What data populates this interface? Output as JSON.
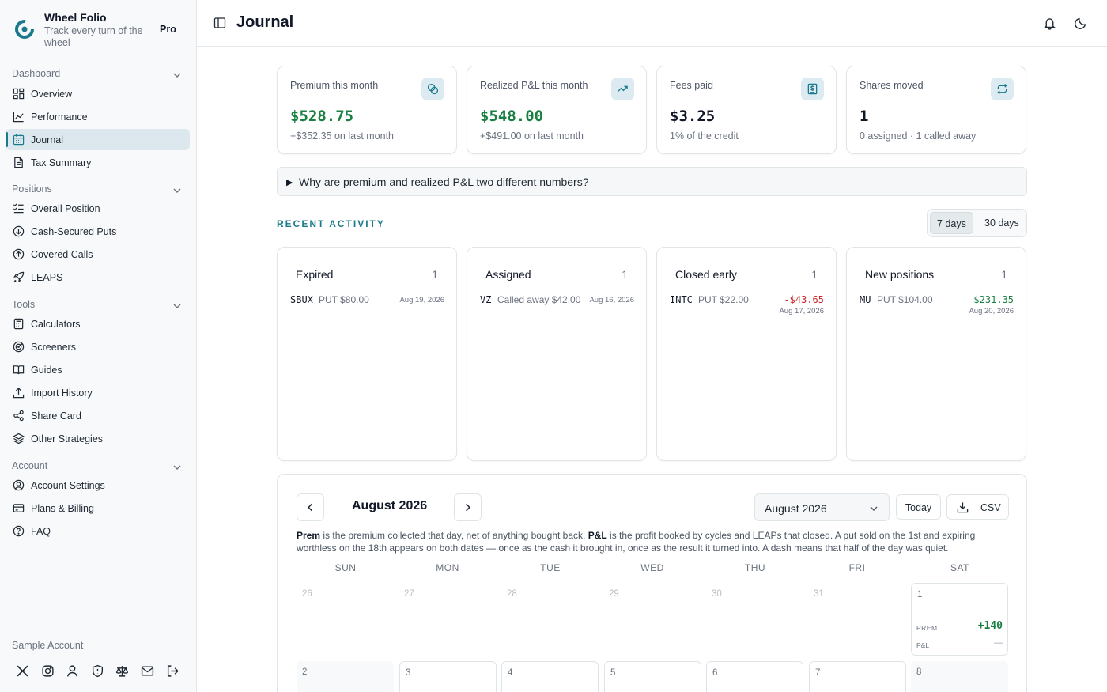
{
  "app": {
    "name": "Wheel Folio",
    "tagline": "Track every turn of the wheel",
    "plan_badge": "Pro"
  },
  "sidebar": {
    "sections": [
      {
        "label": "Dashboard"
      },
      {
        "label": "Positions"
      },
      {
        "label": "Tools"
      },
      {
        "label": "Account"
      }
    ],
    "items": [
      {
        "label": "Overview",
        "icon": "grid-icon"
      },
      {
        "label": "Performance",
        "icon": "line-chart-icon"
      },
      {
        "label": "Journal",
        "icon": "calendar-icon",
        "active": true
      },
      {
        "label": "Tax Summary",
        "icon": "document-icon"
      },
      {
        "label": "Overall Position",
        "icon": "list-check-icon"
      },
      {
        "label": "Cash-Secured Puts",
        "icon": "arrow-down-circle-icon"
      },
      {
        "label": "Covered Calls",
        "icon": "arrow-up-circle-icon"
      },
      {
        "label": "LEAPS",
        "icon": "rocket-icon"
      },
      {
        "label": "Calculators",
        "icon": "calculator-icon"
      },
      {
        "label": "Screeners",
        "icon": "radar-icon"
      },
      {
        "label": "Guides",
        "icon": "book-icon"
      },
      {
        "label": "Import History",
        "icon": "upload-icon"
      },
      {
        "label": "Share Card",
        "icon": "share-icon"
      },
      {
        "label": "Other Strategies",
        "icon": "layers-icon"
      },
      {
        "label": "Account Settings",
        "icon": "user-circle-icon"
      },
      {
        "label": "Plans & Billing",
        "icon": "credit-card-icon"
      },
      {
        "label": "FAQ",
        "icon": "help-circle-icon"
      }
    ],
    "footer": {
      "account_name": "Sample Account",
      "icons": [
        "x-icon",
        "instagram-icon",
        "user-icon",
        "shield-icon",
        "scale-icon",
        "mail-icon",
        "logout-icon"
      ]
    }
  },
  "header": {
    "title": "Journal"
  },
  "stats": [
    {
      "label": "Premium this month",
      "value": "$528.75",
      "sub": "+$352.35 on last month",
      "icon": "coins-icon",
      "tone": "green"
    },
    {
      "label": "Realized P&L this month",
      "value": "$548.00",
      "sub": "+$491.00 on last month",
      "icon": "trending-up-icon",
      "tone": "green"
    },
    {
      "label": "Fees paid",
      "value": "$3.25",
      "sub": "1% of the credit",
      "icon": "receipt-icon",
      "tone": "dark"
    },
    {
      "label": "Shares moved",
      "value": "1",
      "sub": "0 assigned · 1 called away",
      "icon": "repeat-icon",
      "tone": "dark"
    }
  ],
  "explainer": {
    "arrow": "▶",
    "text": "Why are premium and realized P&L two different numbers?"
  },
  "recent": {
    "title": "RECENT ACTIVITY",
    "ranges": [
      "7 days",
      "30 days"
    ],
    "selected_range": "7 days",
    "cards": [
      {
        "title": "Expired",
        "count": "1",
        "ticker": "SBUX",
        "desc": "PUT $80.00",
        "date": "Aug 19, 2026",
        "amount": ""
      },
      {
        "title": "Assigned",
        "count": "1",
        "ticker": "VZ",
        "desc": "Called away $42.00",
        "date": "Aug 16, 2026",
        "amount": ""
      },
      {
        "title": "Closed early",
        "count": "1",
        "ticker": "INTC",
        "desc": "PUT $22.00",
        "date": "Aug 17, 2026",
        "amount": "-$43.65"
      },
      {
        "title": "New positions",
        "count": "1",
        "ticker": "MU",
        "desc": "PUT $104.00",
        "date": "Aug 20, 2026",
        "amount": "$231.35"
      }
    ]
  },
  "calendar": {
    "month_label": "August 2026",
    "select_value": "August 2026",
    "today_label": "Today",
    "csv_label": "CSV",
    "legend": {
      "prem_term": "Prem",
      "prem_text": " is the premium collected that day, net of anything bought back. ",
      "pl_term": "P&L",
      "pl_text": " is the profit booked by cycles and LEAPs that closed. A put sold on the 1st and expiring worthless on the 18th appears on both dates — once as the cash it brought in, once as the result it turned into. A dash means that half of the day was quiet."
    },
    "weekdays": [
      "SUN",
      "MON",
      "TUE",
      "WED",
      "THU",
      "FRI",
      "SAT"
    ],
    "week1": [
      "26",
      "27",
      "28",
      "29",
      "30",
      "31",
      "1"
    ],
    "week2": [
      "2",
      "3",
      "4",
      "5",
      "6",
      "7",
      "8"
    ],
    "day1": {
      "prem_label": "PREM",
      "prem_value": "+140",
      "pl_label": "P&L",
      "pl_value": "—"
    }
  },
  "colors": {
    "accent": "#1a7a8c",
    "positive": "#1a7f43",
    "negative": "#c62828",
    "sidebar_bg": "#f7f9fa"
  }
}
